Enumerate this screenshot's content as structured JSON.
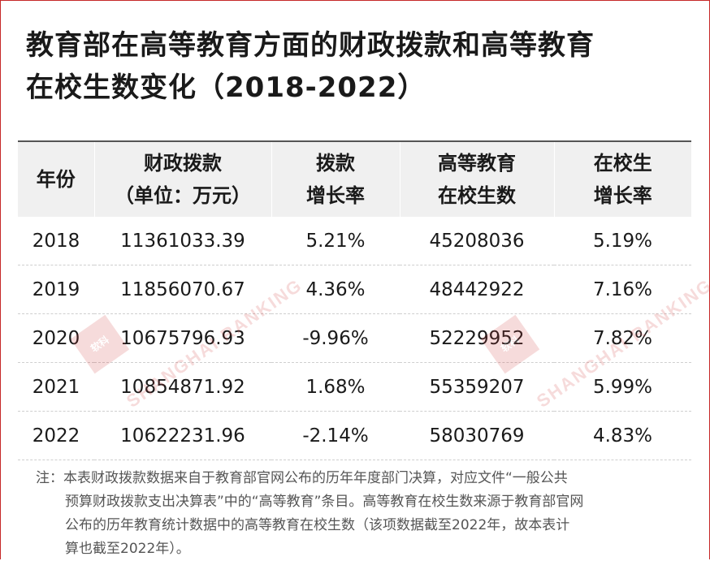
{
  "title_lines": [
    "教育部在高等教育方面的财政拨款和高等教育",
    "在校生数变化（2018-2022）"
  ],
  "table": {
    "headers": [
      [
        "年份"
      ],
      [
        "财政拨款",
        "（单位：万元）"
      ],
      [
        "拨款",
        "增长率"
      ],
      [
        "高等教育",
        "在校生数"
      ],
      [
        "在校生",
        "增长率"
      ]
    ],
    "rows": [
      [
        "2018",
        "11361033.39",
        "5.21%",
        "45208036",
        "5.19%"
      ],
      [
        "2019",
        "11856070.67",
        "4.36%",
        "48442922",
        "7.16%"
      ],
      [
        "2020",
        "10675796.93",
        "-9.96%",
        "52229952",
        "7.82%"
      ],
      [
        "2021",
        "10854871.92",
        "1.68%",
        "55359207",
        "5.99%"
      ],
      [
        "2022",
        "10622231.96",
        "-2.14%",
        "58030769",
        "4.83%"
      ]
    ]
  },
  "note_lines": [
    "注：本表财政拨款数据来自于教育部官网公布的历年年度部门决算，对应文件“一般公共",
    "预算财政拨款支出决算表”中的“高等教育”条目。高等教育在校生数来源于教育部官网",
    "公布的历年教育统计数据中的高等教育在校生数（该项数据截至2022年，故本表计",
    "算也截至2022年）。"
  ],
  "watermark": {
    "logo_text": "软科",
    "brand_text": "SHANGHAI RANKING",
    "color": "#d23b3b"
  },
  "colors": {
    "frame": "#c62828",
    "header_bg": "#f0f0f0"
  }
}
